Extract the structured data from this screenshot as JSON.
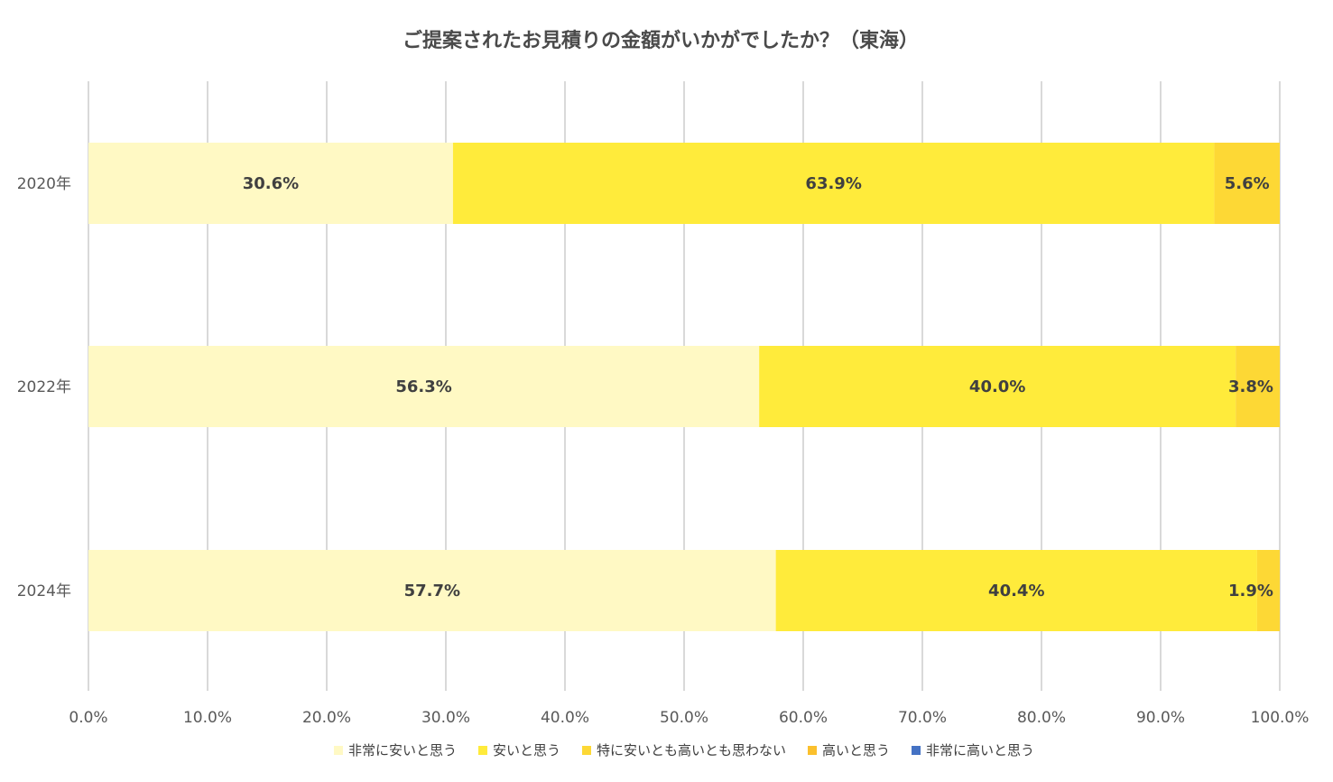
{
  "chart_data": {
    "type": "bar",
    "orientation": "horizontal",
    "stacked": true,
    "title": "ご提案されたお見積りの金額がいかがでしたか？（東海）",
    "categories": [
      "2020年",
      "2022年",
      "2024年"
    ],
    "series": [
      {
        "name": "非常に安いと思う",
        "color": "#fff9c4",
        "values": [
          30.6,
          56.3,
          57.7
        ]
      },
      {
        "name": "安いと思う",
        "color": "#ffeb3b",
        "values": [
          63.9,
          40.0,
          40.4
        ]
      },
      {
        "name": "特に安いとも高いとも思わない",
        "color": "#fdd835",
        "values": [
          5.6,
          3.8,
          1.9
        ]
      },
      {
        "name": "高いと思う",
        "color": "#fbc02d",
        "values": [
          0,
          0,
          0
        ]
      },
      {
        "name": "非常に高いと思う",
        "color": "#4472c4",
        "values": [
          0,
          0,
          0
        ]
      }
    ],
    "data_labels": [
      [
        "30.6%",
        "63.9%",
        "5.6%"
      ],
      [
        "56.3%",
        "40.0%",
        "3.8%"
      ],
      [
        "57.7%",
        "40.4%",
        "1.9%"
      ]
    ],
    "xlim": [
      0,
      100
    ],
    "xticks": [
      0,
      10,
      20,
      30,
      40,
      50,
      60,
      70,
      80,
      90,
      100
    ],
    "xtick_labels": [
      "0.0%",
      "10.0%",
      "20.0%",
      "30.0%",
      "40.0%",
      "50.0%",
      "60.0%",
      "70.0%",
      "80.0%",
      "90.0%",
      "100.0%"
    ],
    "grid": true,
    "legend_position": "bottom"
  }
}
